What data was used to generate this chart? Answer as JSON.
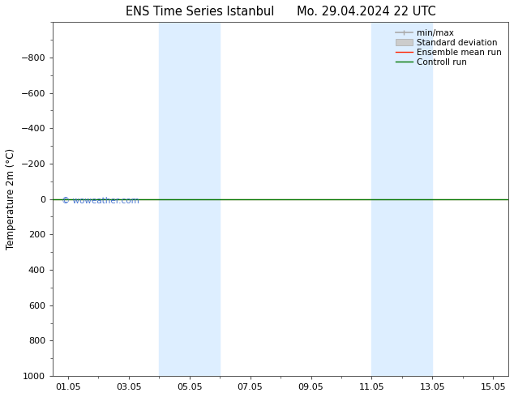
{
  "title_left": "ENS Time Series Istanbul",
  "title_right": "Mo. 29.04.2024 22 UTC",
  "ylabel": "Temperature 2m (°C)",
  "ylim_bottom": 1000,
  "ylim_top": -1000,
  "yticks": [
    -800,
    -600,
    -400,
    -200,
    0,
    200,
    400,
    600,
    800,
    1000
  ],
  "xlim_min": 0,
  "xlim_max": 15,
  "xtick_positions": [
    0.5,
    2.5,
    4.5,
    6.5,
    8.5,
    10.5,
    12.5,
    14.5
  ],
  "xtick_labels": [
    "01.05",
    "03.05",
    "05.05",
    "07.05",
    "09.05",
    "11.05",
    "13.05",
    "15.05"
  ],
  "shaded_regions": [
    {
      "start": 3.5,
      "end": 5.5
    },
    {
      "start": 10.5,
      "end": 12.5
    }
  ],
  "shaded_color": "#ddeeff",
  "control_run_y": 0,
  "ensemble_mean_y": 0,
  "background_color": "#ffffff",
  "minmax_color": "#aaaaaa",
  "std_color": "#cccccc",
  "ensemble_color": "#ff2200",
  "control_color": "#007700",
  "watermark": "© woweather.com",
  "watermark_color": "#3366cc",
  "title_fontsize": 10.5,
  "tick_fontsize": 8,
  "ylabel_fontsize": 8.5,
  "legend_fontsize": 7.5
}
